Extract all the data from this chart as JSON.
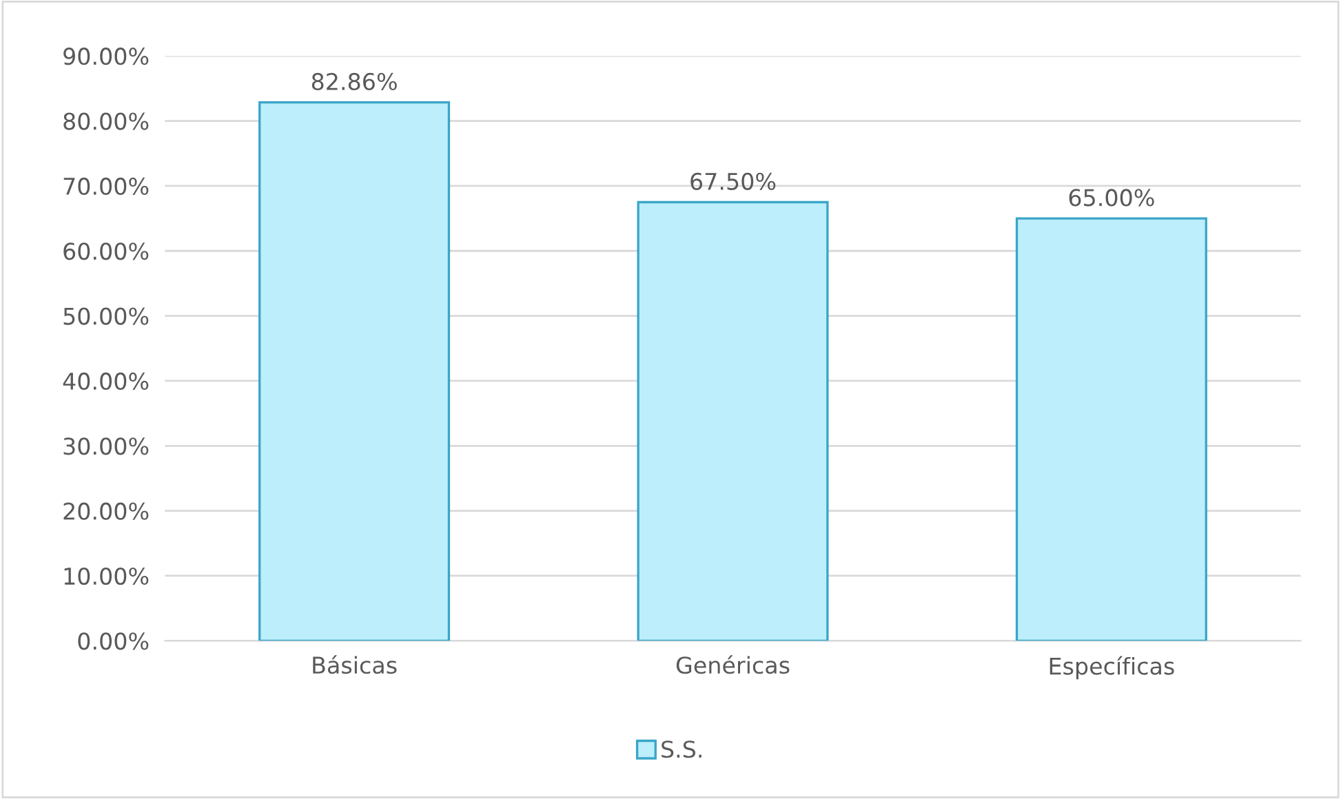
{
  "chart_data": {
    "type": "bar",
    "categories": [
      "Básicas",
      "Genéricas",
      "Específicas"
    ],
    "series": [
      {
        "name": "S.S.",
        "color": "#bdeefc",
        "values": [
          82.86,
          67.5,
          65.0
        ],
        "value_labels": [
          "82.86%",
          "67.50%",
          "65.00%"
        ]
      }
    ],
    "ylim": [
      0,
      90
    ],
    "yticks": [
      {
        "value": 0,
        "label": "0.00%"
      },
      {
        "value": 10,
        "label": "10.00%"
      },
      {
        "value": 20,
        "label": "20.00%"
      },
      {
        "value": 30,
        "label": "30.00%"
      },
      {
        "value": 40,
        "label": "40.00%"
      },
      {
        "value": 50,
        "label": "50.00%"
      },
      {
        "value": 60,
        "label": "60.00%"
      },
      {
        "value": 70,
        "label": "70.00%"
      },
      {
        "value": 80,
        "label": "80.00%"
      },
      {
        "value": 90,
        "label": "90.00%"
      }
    ],
    "grid": "y",
    "legend": "bottom"
  }
}
